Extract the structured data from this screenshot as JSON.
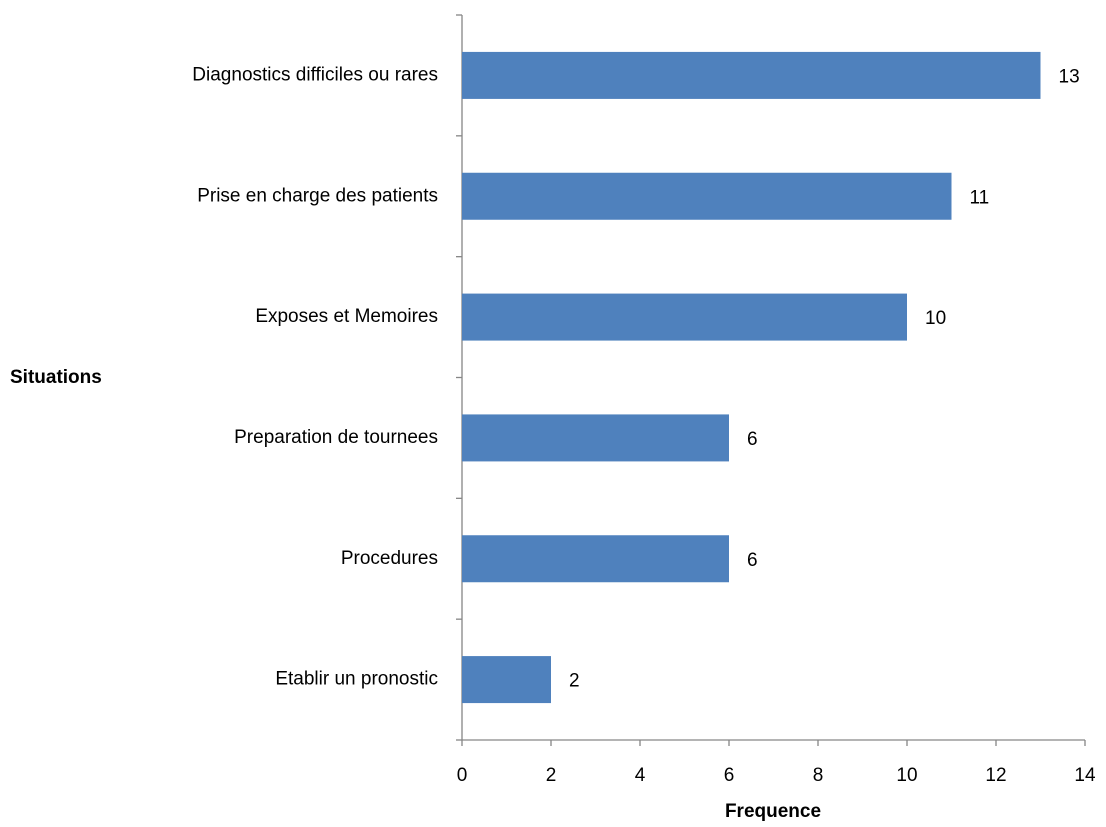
{
  "chart_data": {
    "type": "bar",
    "orientation": "horizontal",
    "x_label": "Frequence",
    "y_label": "Situations",
    "categories": [
      "Diagnostics difficiles ou rares",
      "Prise en charge des patients",
      "Exposes et Memoires",
      "Preparation de tournees",
      "Procedures",
      "Etablir un pronostic"
    ],
    "values": [
      13,
      11,
      10,
      6,
      6,
      2
    ],
    "color": "#4f81bd",
    "xlim": [
      0,
      14
    ],
    "xticks": [
      0,
      2,
      4,
      6,
      8,
      10,
      12,
      14
    ],
    "grid": false
  }
}
